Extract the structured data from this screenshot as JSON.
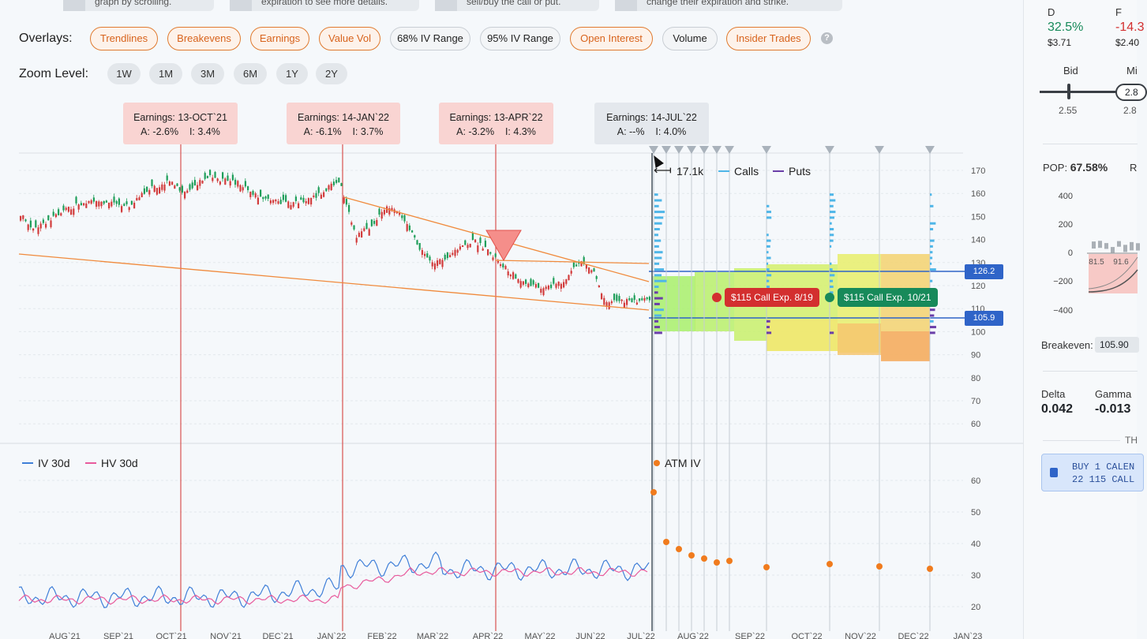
{
  "tips": [
    {
      "text": "graph by scrolling."
    },
    {
      "text": "expiration to see more details."
    },
    {
      "text": "sell/buy the call or put."
    },
    {
      "text": "change their expiration and strike."
    }
  ],
  "overlays": {
    "label": "Overlays:",
    "buttons": [
      {
        "label": "Trendlines",
        "active": true
      },
      {
        "label": "Breakevens",
        "active": true
      },
      {
        "label": "Earnings",
        "active": true
      },
      {
        "label": "Value Vol",
        "active": true
      },
      {
        "label": "68% IV Range",
        "active": false
      },
      {
        "label": "95% IV Range",
        "active": false
      },
      {
        "label": "Open Interest",
        "active": true
      },
      {
        "label": "Volume",
        "active": false
      },
      {
        "label": "Insider Trades",
        "active": true
      }
    ],
    "help": "?"
  },
  "zoom": {
    "label": "Zoom Level:",
    "options": [
      "1W",
      "1M",
      "3M",
      "6M",
      "1Y",
      "2Y"
    ]
  },
  "earnings": [
    {
      "title": "Earnings: 13-OCT`21",
      "detail": "A: -2.6%    I: 3.4%"
    },
    {
      "title": "Earnings: 14-JAN`22",
      "detail": "A: -6.1%    I: 3.7%"
    },
    {
      "title": "Earnings: 13-APR`22",
      "detail": "A: -3.2%    I: 4.3%"
    },
    {
      "title": "Earnings: 14-JUL`22",
      "detail": "A: --%    I: 4.0%"
    }
  ],
  "price_chart": {
    "y_ticks": [
      "170",
      "160",
      "150",
      "140",
      "130",
      "120",
      "110",
      "100",
      "90",
      "80",
      "70",
      "60"
    ],
    "oi_scale": "17.1k",
    "legend_calls": "Calls",
    "legend_puts": "Puts",
    "upper_breakeven": "126.2",
    "lower_breakeven": "105.9",
    "call_tag_1": "$115 Call Exp. 8/19",
    "call_tag_2": "$115 Call Exp. 10/21"
  },
  "iv_chart": {
    "legend_iv": "IV 30d",
    "legend_hv": "HV 30d",
    "legend_atm": "ATM IV",
    "y_ticks": [
      "60",
      "50",
      "40",
      "30",
      "20"
    ]
  },
  "x_axis": [
    "AUG`21",
    "SEP`21",
    "OCT`21",
    "NOV`21",
    "DEC`21",
    "JAN`22",
    "FEB`22",
    "MAR`22",
    "APR`22",
    "MAY`22",
    "JUN`22",
    "JUL`22",
    "AUG`22",
    "SEP`22",
    "OCT`22",
    "NOV`22",
    "DEC`22",
    "JAN`23"
  ],
  "colors": {
    "accent": "#e07a2f",
    "blue": "#2f64c8",
    "red": "#d32f2f",
    "green": "#178a5a"
  },
  "sidebar": {
    "col_d": "D",
    "col_f": "F",
    "d_pct": "32.5%",
    "f_pct": "-14.3",
    "d_price": "$3.71",
    "f_price": "$2.40",
    "bid_label": "Bid",
    "mid_label": "Mi",
    "bid_value": "2.55",
    "mid_value": "2.8",
    "mid_box": "2.8",
    "pop_label": "POP:",
    "pop_value": "67.58%",
    "pop_r": "R",
    "pl_ticks": [
      "400",
      "200",
      "0",
      "−200",
      "−400"
    ],
    "pl_x1": "81.5",
    "pl_x2": "91.6",
    "breakeven_label": "Breakeven:",
    "breakeven_value": "105.90",
    "delta_label": "Delta",
    "gamma_label": "Gamma",
    "delta_value": "0.042",
    "gamma_value": "-0.013",
    "th_label": "TH",
    "trade_line1": "BUY 1 CALEN",
    "trade_line2": "22 115 CALL"
  }
}
